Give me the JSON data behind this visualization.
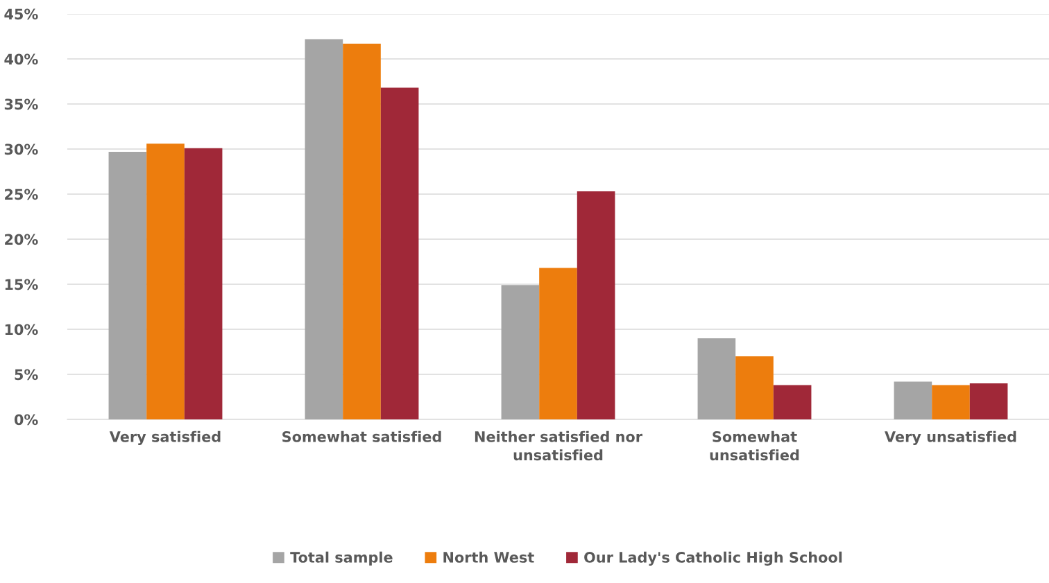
{
  "chart_data": {
    "type": "bar",
    "categories": [
      "Very satisfied",
      "Somewhat satisfied",
      "Neither satisfied nor\nunsatisfied",
      "Somewhat\nunsatisfied",
      "Very unsatisfied"
    ],
    "series": [
      {
        "name": "Total sample",
        "color": "#a5a5a5",
        "values": [
          29.7,
          42.2,
          14.9,
          9.0,
          4.2
        ]
      },
      {
        "name": "North West",
        "color": "#ed7d0d",
        "values": [
          30.6,
          41.7,
          16.8,
          7.0,
          3.8
        ]
      },
      {
        "name": "Our Lady's Catholic High School",
        "color": "#a02838",
        "values": [
          30.1,
          36.8,
          25.3,
          3.8,
          4.0
        ]
      }
    ],
    "ylim": [
      0,
      45
    ],
    "yticks": [
      {
        "value": 0,
        "label": "0%"
      },
      {
        "value": 5,
        "label": "5%"
      },
      {
        "value": 10,
        "label": "10%"
      },
      {
        "value": 15,
        "label": "15%"
      },
      {
        "value": 20,
        "label": "20%"
      },
      {
        "value": 25,
        "label": "25%"
      },
      {
        "value": 30,
        "label": "30%"
      },
      {
        "value": 35,
        "label": "35%"
      },
      {
        "value": 40,
        "label": "40%"
      },
      {
        "value": 45,
        "label": "45%"
      }
    ],
    "grid": "y",
    "legend": "bottom"
  }
}
